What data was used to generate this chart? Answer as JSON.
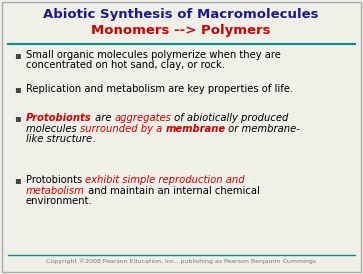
{
  "title_line1": "Abiotic Synthesis of Macromolecules",
  "title_line2": "Monomers --> Polymers",
  "title_color1": "#1a1a8c",
  "title_color2": "#cc0000",
  "title_fontsize": 9.5,
  "teal_line_color": "#009090",
  "background_color": "#f0f0e8",
  "bullet_char": "▪",
  "bullet_color": "#444444",
  "body_fontsize": 7.2,
  "copyright_text": "Copyright ©2008 Pearson Education, Inc., publishing as Pearson Benjamin Cummings",
  "copyright_fontsize": 4.5,
  "border_color": "#aaaaaa",
  "bullets": [
    {
      "segments": [
        {
          "text": "Small organic molecules polymerize when they are\nconcentrated on hot sand, clay, or rock.",
          "style": "normal",
          "color": "#000000"
        }
      ]
    },
    {
      "segments": [
        {
          "text": "Replication and metabolism are key properties of life.",
          "style": "normal",
          "color": "#000000"
        }
      ]
    },
    {
      "segments": [
        {
          "text": "Protobionts",
          "style": "bold-italic",
          "color": "#cc0000"
        },
        {
          "text": " are ",
          "style": "italic",
          "color": "#000000"
        },
        {
          "text": "aggregates",
          "style": "italic",
          "color": "#cc0000"
        },
        {
          "text": " of abiotically produced\nmolecules ",
          "style": "italic",
          "color": "#000000"
        },
        {
          "text": "surrounded by a ",
          "style": "italic",
          "color": "#cc0000"
        },
        {
          "text": "membrane",
          "style": "bold-italic",
          "color": "#cc0000"
        },
        {
          "text": " or membrane-\nlike structure",
          "style": "italic",
          "color": "#000000"
        },
        {
          "text": ".",
          "style": "italic",
          "color": "#000000"
        }
      ]
    },
    {
      "segments": [
        {
          "text": "Protobionts ",
          "style": "normal",
          "color": "#000000"
        },
        {
          "text": "exhibit simple reproduction and\nmetabolism",
          "style": "italic",
          "color": "#cc0000"
        },
        {
          "text": " and maintain an internal chemical\nenvironment.",
          "style": "normal",
          "color": "#000000"
        }
      ]
    }
  ]
}
